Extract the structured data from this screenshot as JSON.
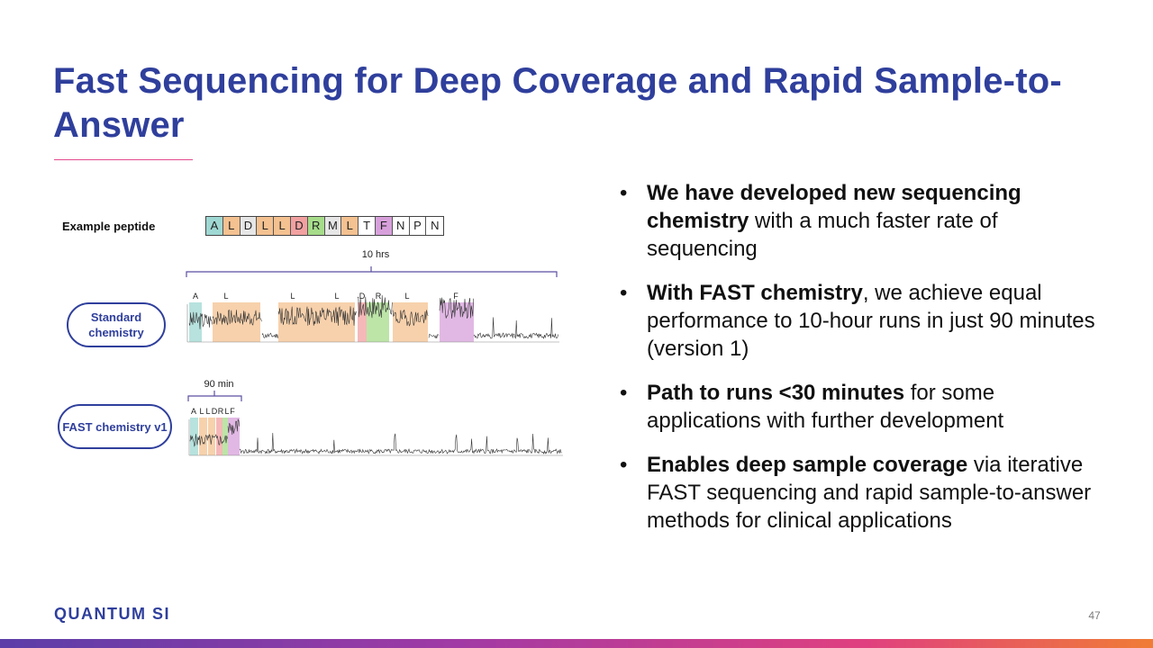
{
  "slide": {
    "title": "Fast Sequencing for Deep Coverage and Rapid Sample-to-Answer",
    "page_number": "47",
    "logo": "QUANTUM SI",
    "colors": {
      "title": "#2f3f9c",
      "accent_rule": "#e24a8d"
    }
  },
  "figure": {
    "peptide_label": "Example peptide",
    "peptide": [
      {
        "letter": "A",
        "color": "#9fd8d3"
      },
      {
        "letter": "L",
        "color": "#f4c190"
      },
      {
        "letter": "D",
        "color": "#e6e6e6"
      },
      {
        "letter": "L",
        "color": "#f4c190"
      },
      {
        "letter": "L",
        "color": "#f4c190"
      },
      {
        "letter": "D",
        "color": "#f2a0a0"
      },
      {
        "letter": "R",
        "color": "#a6dc8a"
      },
      {
        "letter": "M",
        "color": "#e6e6e6"
      },
      {
        "letter": "L",
        "color": "#f4c190"
      },
      {
        "letter": "T",
        "color": "#ffffff"
      },
      {
        "letter": "F",
        "color": "#d7a0db"
      },
      {
        "letter": "N",
        "color": "#ffffff"
      },
      {
        "letter": "P",
        "color": "#ffffff"
      },
      {
        "letter": "N",
        "color": "#ffffff"
      }
    ],
    "standard": {
      "label": "Standard chemistry",
      "duration": "10 hrs",
      "residue_labels": [
        "A",
        "L",
        "L",
        "L",
        "D",
        "R",
        "L",
        "F"
      ]
    },
    "fast": {
      "label": "FAST chemistry v1",
      "duration": "90 min",
      "residue_labels": [
        "A",
        "L",
        "L",
        "D",
        "R",
        "L",
        "F"
      ]
    }
  },
  "bullets": [
    {
      "bold": "We have developed new sequencing chemistry",
      "rest": " with a much faster rate of sequencing"
    },
    {
      "bold": "With FAST chemistry",
      "rest": ", we achieve equal performance to 10-hour runs in just 90 minutes (version 1)"
    },
    {
      "bold": "Path to runs <30 minutes",
      "rest": " for some applications with further development"
    },
    {
      "bold": "Enables deep sample coverage",
      "rest": " via iterative FAST sequencing and rapid sample-to-answer methods for clinical applications"
    }
  ]
}
